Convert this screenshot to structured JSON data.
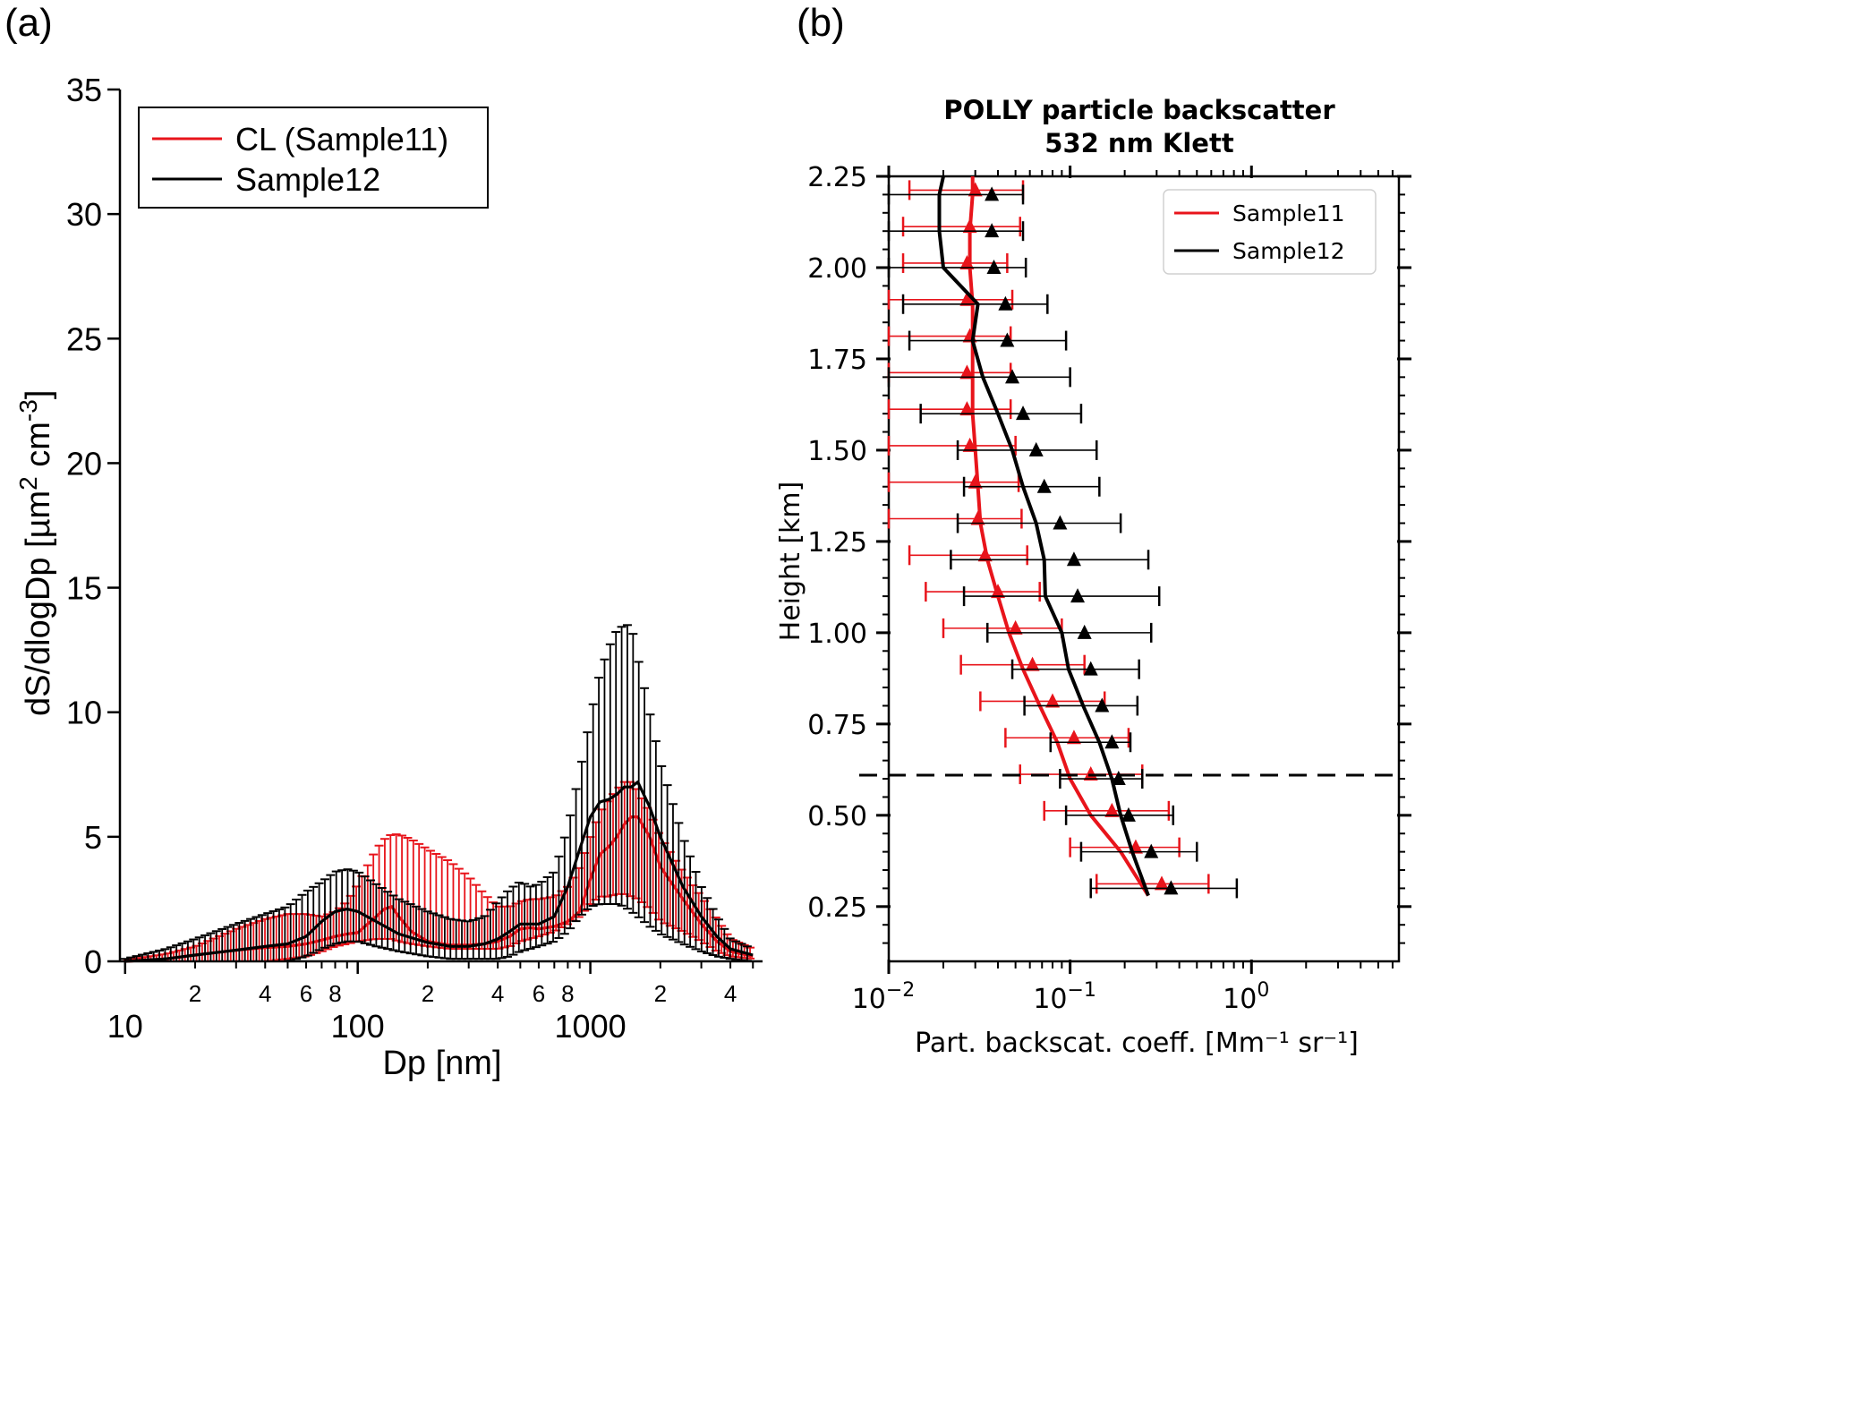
{
  "panel_labels": {
    "a": "(a)",
    "b": "(b)"
  },
  "colors": {
    "red": "#e8141b",
    "black": "#000000"
  },
  "panel_a": {
    "ylabel": "dS/dlogDp [µm² cm⁻³]",
    "ylabel_main": "dS/dlogDp [µm",
    "ylabel_sup1": "2",
    "ylabel_mid": " cm",
    "ylabel_sup2": "-3",
    "ylabel_end": "]",
    "xlabel": "Dp [nm]",
    "legend": [
      "CL (Sample11)",
      "Sample12"
    ],
    "y_ticks": [
      "0",
      "5",
      "10",
      "15",
      "20",
      "25",
      "30",
      "35"
    ],
    "x_major_ticks": [
      "10",
      "100",
      "1000"
    ],
    "x_minor_labels": [
      "2",
      "4",
      "6",
      "8"
    ]
  },
  "panel_b": {
    "title_line1": "POLLY particle backscatter",
    "title_line2": "532 nm Klett",
    "ylabel": "Height [km]",
    "xlabel": "Part. backscat. coeff. [Mm⁻¹ sr⁻¹]",
    "legend": [
      "Sample11",
      "Sample12"
    ],
    "y_ticks": [
      "0.25",
      "0.50",
      "0.75",
      "1.00",
      "1.25",
      "1.50",
      "1.75",
      "2.00",
      "2.25"
    ],
    "x_tick_base": "10",
    "x_tick_exps": [
      "−2",
      "−1",
      "0"
    ]
  },
  "chart_data": [
    {
      "type": "line",
      "title": "",
      "xlabel": "Dp [nm]",
      "ylabel": "dS/dlogDp [µm² cm⁻³]",
      "x_scale": "log",
      "xlim": [
        9.5,
        5500
      ],
      "ylim": [
        0,
        35
      ],
      "legend_position": "top-left",
      "grid": false,
      "error_bars": true,
      "series": [
        {
          "name": "CL (Sample11)",
          "color": "#e8141b",
          "x": [
            10,
            15,
            20,
            30,
            40,
            50,
            60,
            70,
            80,
            90,
            100,
            120,
            130,
            140,
            150,
            170,
            200,
            250,
            300,
            350,
            400,
            450,
            500,
            550,
            600,
            700,
            800,
            900,
            1000,
            1100,
            1200,
            1300,
            1400,
            1500,
            1600,
            1800,
            2000,
            2500,
            3000,
            3500,
            4000,
            5000
          ],
          "y": [
            0.0,
            0.1,
            0.25,
            0.45,
            0.55,
            0.6,
            0.7,
            0.85,
            1.0,
            1.1,
            1.15,
            1.8,
            2.1,
            2.2,
            1.8,
            1.2,
            0.8,
            0.65,
            0.65,
            0.7,
            0.8,
            1.0,
            1.3,
            1.35,
            1.3,
            1.4,
            1.6,
            2.0,
            3.3,
            4.3,
            4.6,
            5.0,
            5.5,
            5.8,
            5.8,
            5.0,
            3.8,
            2.5,
            1.5,
            0.8,
            0.4,
            0.2
          ],
          "y_upper": [
            0.05,
            0.3,
            0.6,
            1.3,
            1.7,
            1.9,
            1.9,
            1.8,
            2.0,
            2.4,
            3.1,
            4.5,
            4.9,
            5.1,
            5.1,
            4.9,
            4.5,
            4.0,
            3.4,
            2.7,
            2.2,
            2.2,
            2.4,
            2.5,
            2.5,
            2.6,
            3.0,
            3.8,
            5.0,
            6.0,
            6.5,
            6.9,
            7.2,
            7.2,
            6.8,
            6.0,
            5.0,
            3.6,
            2.6,
            1.7,
            0.9,
            0.5
          ],
          "y_lower": [
            0.0,
            0.0,
            0.0,
            0.0,
            0.0,
            0.1,
            0.2,
            0.4,
            0.6,
            0.7,
            0.8,
            0.9,
            0.9,
            0.9,
            0.8,
            0.7,
            0.6,
            0.5,
            0.5,
            0.5,
            0.5,
            0.6,
            0.8,
            0.9,
            1.0,
            1.2,
            1.5,
            1.8,
            2.3,
            2.6,
            2.6,
            2.7,
            2.7,
            2.6,
            2.5,
            2.1,
            1.6,
            1.2,
            0.8,
            0.4,
            0.2,
            0.1
          ]
        },
        {
          "name": "Sample12",
          "color": "#000000",
          "x": [
            10,
            15,
            20,
            30,
            40,
            50,
            60,
            70,
            80,
            90,
            100,
            120,
            150,
            200,
            250,
            300,
            350,
            400,
            450,
            500,
            550,
            600,
            700,
            800,
            900,
            1000,
            1100,
            1200,
            1300,
            1400,
            1500,
            1600,
            1800,
            2000,
            2500,
            3000,
            3500,
            4000,
            5000
          ],
          "y": [
            0.0,
            0.1,
            0.25,
            0.45,
            0.6,
            0.7,
            1.0,
            1.6,
            2.0,
            2.1,
            2.0,
            1.6,
            1.1,
            0.75,
            0.6,
            0.6,
            0.7,
            0.9,
            1.2,
            1.5,
            1.5,
            1.5,
            1.8,
            3.0,
            4.5,
            5.8,
            6.4,
            6.5,
            6.7,
            7.0,
            7.0,
            7.2,
            6.2,
            5.0,
            3.0,
            1.8,
            1.0,
            0.5,
            0.25
          ],
          "y_upper": [
            0.1,
            0.5,
            0.9,
            1.5,
            1.9,
            2.2,
            2.8,
            3.2,
            3.6,
            3.7,
            3.6,
            3.1,
            2.5,
            2.0,
            1.7,
            1.6,
            1.8,
            2.4,
            2.9,
            3.2,
            3.0,
            3.1,
            3.6,
            5.4,
            7.6,
            9.8,
            11.6,
            12.6,
            13.3,
            13.5,
            13.5,
            12.2,
            10.0,
            8.0,
            5.0,
            3.0,
            1.8,
            0.9,
            0.5
          ],
          "y_lower": [
            0.0,
            0.0,
            0.0,
            0.0,
            0.0,
            0.0,
            0.2,
            0.5,
            0.7,
            0.8,
            0.8,
            0.6,
            0.4,
            0.2,
            0.1,
            0.1,
            0.1,
            0.1,
            0.2,
            0.4,
            0.5,
            0.6,
            0.8,
            1.2,
            1.8,
            2.2,
            2.3,
            2.3,
            2.3,
            2.2,
            2.0,
            1.8,
            1.4,
            1.1,
            0.7,
            0.4,
            0.2,
            0.1,
            0.0
          ]
        }
      ]
    },
    {
      "type": "line",
      "title": "POLLY particle backscatter 532 nm Klett",
      "xlabel": "Part. backscat. coeff. [Mm⁻¹ sr⁻¹]",
      "ylabel": "Height [km]",
      "x_scale": "log",
      "xlim": [
        0.01,
        6.5
      ],
      "ylim": [
        0.1,
        2.25
      ],
      "legend_position": "top-right",
      "grid": false,
      "reference_line": {
        "style": "dashed",
        "orientation": "horizontal",
        "y": 0.61
      },
      "series": [
        {
          "name": "Sample11",
          "color": "#e8141b",
          "height": [
            2.25,
            2.2,
            2.1,
            2.0,
            1.9,
            1.8,
            1.7,
            1.6,
            1.5,
            1.4,
            1.3,
            1.2,
            1.1,
            1.0,
            0.9,
            0.8,
            0.7,
            0.6,
            0.5,
            0.4,
            0.28
          ],
          "line": [
            0.029,
            0.029,
            0.028,
            0.028,
            0.029,
            0.029,
            0.029,
            0.029,
            0.03,
            0.031,
            0.032,
            0.035,
            0.04,
            0.046,
            0.055,
            0.068,
            0.085,
            0.1,
            0.13,
            0.19,
            0.27
          ],
          "marker_height": [
            2.2,
            2.1,
            2.0,
            1.9,
            1.8,
            1.7,
            1.6,
            1.5,
            1.4,
            1.3,
            1.2,
            1.1,
            1.0,
            0.9,
            0.8,
            0.7,
            0.6,
            0.5,
            0.4,
            0.3
          ],
          "marker": [
            0.03,
            0.028,
            0.027,
            0.027,
            0.028,
            0.027,
            0.027,
            0.028,
            0.03,
            0.031,
            0.034,
            0.04,
            0.05,
            0.062,
            0.08,
            0.105,
            0.13,
            0.17,
            0.23,
            0.32
          ],
          "err_low": [
            0.013,
            0.012,
            0.012,
            0.01,
            0.01,
            0.01,
            0.01,
            0.01,
            0.01,
            0.01,
            0.013,
            0.016,
            0.02,
            0.025,
            0.032,
            0.044,
            0.053,
            0.072,
            0.1,
            0.14
          ],
          "err_high": [
            0.055,
            0.053,
            0.045,
            0.048,
            0.047,
            0.047,
            0.047,
            0.05,
            0.052,
            0.054,
            0.058,
            0.068,
            0.09,
            0.12,
            0.155,
            0.21,
            0.25,
            0.35,
            0.4,
            0.58
          ]
        },
        {
          "name": "Sample12",
          "color": "#000000",
          "height": [
            2.25,
            2.2,
            2.1,
            2.0,
            1.9,
            1.8,
            1.7,
            1.6,
            1.5,
            1.4,
            1.3,
            1.2,
            1.1,
            1.0,
            0.9,
            0.8,
            0.7,
            0.6,
            0.5,
            0.4,
            0.28
          ],
          "line": [
            0.02,
            0.019,
            0.019,
            0.02,
            0.031,
            0.029,
            0.033,
            0.04,
            0.048,
            0.055,
            0.065,
            0.072,
            0.073,
            0.09,
            0.098,
            0.118,
            0.145,
            0.17,
            0.19,
            0.22,
            0.27
          ],
          "marker_height": [
            2.2,
            2.1,
            2.0,
            1.9,
            1.8,
            1.7,
            1.6,
            1.5,
            1.4,
            1.3,
            1.2,
            1.1,
            1.0,
            0.9,
            0.8,
            0.7,
            0.6,
            0.5,
            0.4,
            0.3
          ],
          "marker": [
            0.037,
            0.037,
            0.038,
            0.044,
            0.045,
            0.048,
            0.055,
            0.065,
            0.072,
            0.088,
            0.105,
            0.11,
            0.12,
            0.13,
            0.15,
            0.17,
            0.185,
            0.21,
            0.28,
            0.36
          ],
          "err_low": [
            0.01,
            0.01,
            0.01,
            0.012,
            0.013,
            0.01,
            0.015,
            0.024,
            0.026,
            0.024,
            0.022,
            0.026,
            0.035,
            0.048,
            0.056,
            0.078,
            0.088,
            0.095,
            0.115,
            0.13
          ],
          "err_high": [
            0.055,
            0.055,
            0.057,
            0.075,
            0.095,
            0.1,
            0.115,
            0.14,
            0.145,
            0.19,
            0.27,
            0.31,
            0.28,
            0.24,
            0.235,
            0.215,
            0.25,
            0.37,
            0.5,
            0.83
          ]
        }
      ]
    }
  ]
}
